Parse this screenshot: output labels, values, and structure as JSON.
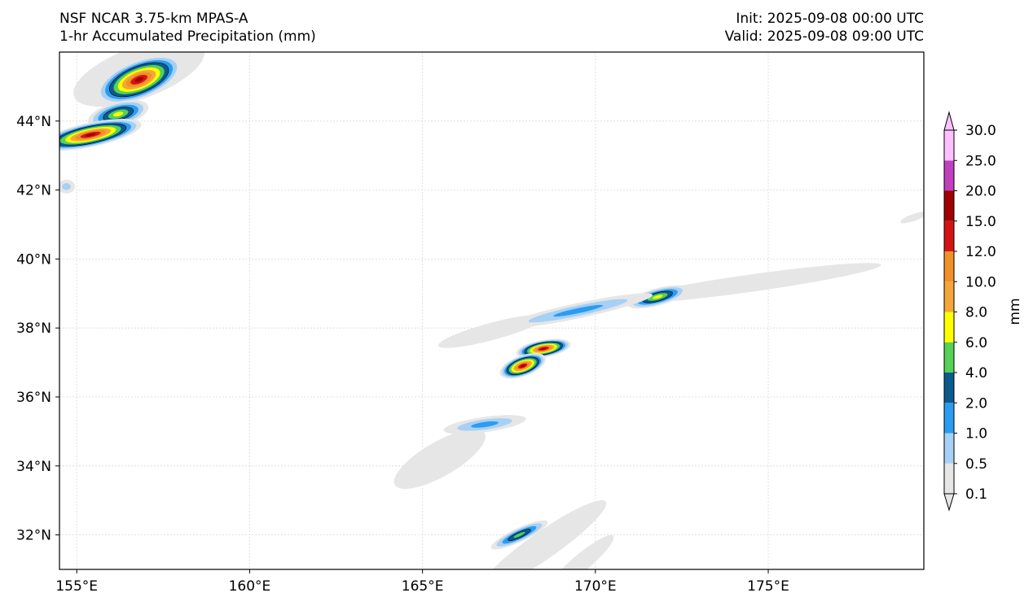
{
  "header": {
    "model": "NSF NCAR 3.75-km MPAS-A",
    "field": "1-hr Accumulated Precipitation (mm)",
    "init": "Init: 2025-09-08 00:00 UTC",
    "valid": "Valid: 2025-09-08 09:00 UTC"
  },
  "map": {
    "lon_range": [
      154.5,
      179.5
    ],
    "lat_range": [
      31.0,
      46.0
    ],
    "lon_ticks": [
      155,
      160,
      165,
      170,
      175
    ],
    "lon_labels": [
      "155°E",
      "160°E",
      "165°E",
      "170°E",
      "175°E"
    ],
    "lat_ticks": [
      32,
      34,
      36,
      38,
      40,
      42,
      44
    ],
    "lat_labels": [
      "32°N",
      "34°N",
      "36°N",
      "38°N",
      "40°N",
      "42°N",
      "44°N"
    ],
    "gridlines": true
  },
  "colorbar": {
    "label": "mm",
    "levels": [
      "0.1",
      "0.5",
      "1.0",
      "2.0",
      "4.0",
      "6.0",
      "8.0",
      "10.0",
      "12.0",
      "15.0",
      "20.0",
      "25.0",
      "30.0"
    ],
    "colors": [
      "#e6e6e6",
      "#a6d0f6",
      "#2b9cf0",
      "#0b5a8c",
      "#55d155",
      "#ffff00",
      "#f5a53a",
      "#f09028",
      "#d41414",
      "#a00000",
      "#c040c0",
      "#ffc0ff"
    ],
    "extend": "both"
  },
  "features": [
    {
      "name": "nw-band-upper",
      "lon": 156.8,
      "lat": 45.2,
      "rx": 1.3,
      "ry": 0.55,
      "rot": -22,
      "level": 10
    },
    {
      "name": "nw-band-mid",
      "lon": 156.2,
      "lat": 44.2,
      "rx": 0.9,
      "ry": 0.35,
      "rot": -15,
      "level": 6
    },
    {
      "name": "nw-band-lower",
      "lon": 155.4,
      "lat": 43.6,
      "rx": 1.5,
      "ry": 0.35,
      "rot": -12,
      "level": 10
    },
    {
      "name": "nw-edge-cell",
      "lon": 154.7,
      "lat": 42.1,
      "rx": 0.25,
      "ry": 0.2,
      "rot": 0,
      "level": 2
    },
    {
      "name": "cyclone-core-north",
      "lon": 168.5,
      "lat": 37.4,
      "rx": 0.8,
      "ry": 0.25,
      "rot": -10,
      "level": 10
    },
    {
      "name": "cyclone-core-south",
      "lon": 167.9,
      "lat": 36.9,
      "rx": 0.7,
      "ry": 0.3,
      "rot": -20,
      "level": 10
    },
    {
      "name": "cyclone-spiral-arm",
      "lon": 166.8,
      "lat": 35.2,
      "rx": 1.2,
      "ry": 0.22,
      "rot": -8,
      "level": 3
    },
    {
      "name": "frontal-band-east",
      "lon": 171.8,
      "lat": 38.9,
      "rx": 0.9,
      "ry": 0.25,
      "rot": -15,
      "level": 6
    },
    {
      "name": "frontal-band-mid",
      "lon": 169.5,
      "lat": 38.5,
      "rx": 2.2,
      "ry": 0.22,
      "rot": -12,
      "level": 3
    },
    {
      "name": "south-cells",
      "lon": 167.8,
      "lat": 32.0,
      "rx": 0.9,
      "ry": 0.2,
      "rot": -25,
      "level": 5
    }
  ],
  "light_patches": [
    {
      "lon": 174.5,
      "lat": 39.3,
      "rx": 3.8,
      "ry": 0.25,
      "rot": -8
    },
    {
      "lon": 167.0,
      "lat": 37.9,
      "rx": 1.6,
      "ry": 0.25,
      "rot": -15
    },
    {
      "lon": 165.5,
      "lat": 34.2,
      "rx": 1.5,
      "ry": 0.5,
      "rot": -30
    },
    {
      "lon": 168.5,
      "lat": 31.7,
      "rx": 2.2,
      "ry": 0.4,
      "rot": -35
    },
    {
      "lon": 169.6,
      "lat": 31.2,
      "rx": 1.2,
      "ry": 0.25,
      "rot": -40
    },
    {
      "lon": 179.2,
      "lat": 41.2,
      "rx": 0.4,
      "ry": 0.1,
      "rot": -20
    },
    {
      "lon": 156.8,
      "lat": 45.4,
      "rx": 2.0,
      "ry": 0.75,
      "rot": -20
    }
  ]
}
